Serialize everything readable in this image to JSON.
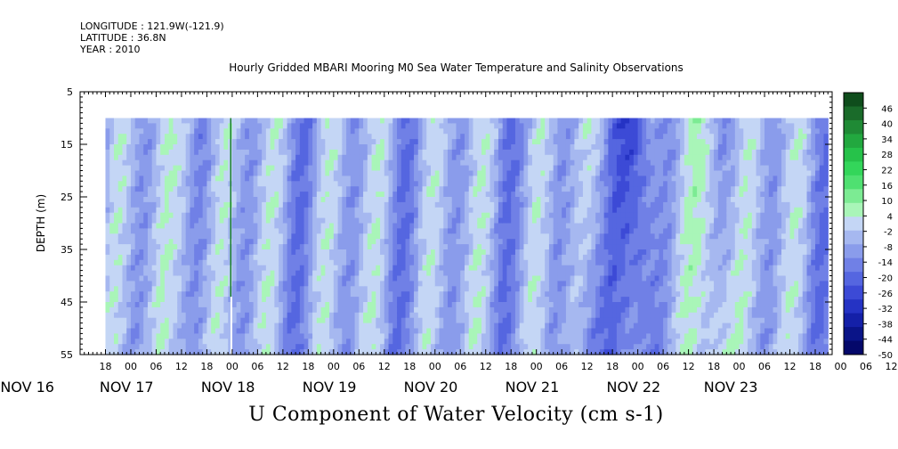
{
  "header": {
    "longitude": "LONGITUDE : 121.9W(-121.9)",
    "latitude": "LATITUDE : 36.8N",
    "year": "YEAR : 2010"
  },
  "chart_data": {
    "type": "heatmap",
    "title": "Hourly Gridded MBARI Mooring M0 Sea Water Temperature and Salinity Observations",
    "xlabel": "U Component of Water Velocity (cm s-1)",
    "ylabel": "DEPTH (m)",
    "x_hour_start": 12,
    "x_hour_end": 190,
    "data_hour_start": 18,
    "data_hour_end": 189,
    "ylim": [
      55,
      5
    ],
    "data_depth_top": 10,
    "data_depth_bottom": 55,
    "y_ticks": [
      "5",
      "15",
      "25",
      "35",
      "45",
      "55"
    ],
    "y_tick_values": [
      5,
      15,
      25,
      35,
      45,
      55
    ],
    "x_hour_ticks": [
      "18",
      "00",
      "06",
      "12",
      "18",
      "00",
      "06",
      "12",
      "18",
      "00",
      "06",
      "12",
      "18",
      "00",
      "06",
      "12",
      "18",
      "00",
      "06",
      "12",
      "18",
      "00",
      "06",
      "12",
      "18",
      "00",
      "06",
      "12",
      "18",
      "00",
      "06",
      "12"
    ],
    "x_day_labels": [
      "NOV 16",
      "NOV 17",
      "NOV 18",
      "NOV 19",
      "NOV 20",
      "NOV 21",
      "NOV 22",
      "NOV 23"
    ],
    "x_day_positions": [
      -0.5,
      23,
      47,
      71,
      95,
      119,
      143,
      166
    ],
    "colorbar": {
      "levels": [
        "46",
        "40",
        "34",
        "28",
        "22",
        "16",
        "10",
        "4",
        "-2",
        "-8",
        "-14",
        "-20",
        "-26",
        "-32",
        "-38",
        "-44",
        "-50"
      ],
      "range": [
        -50,
        52
      ],
      "colors": [
        "#0f4d1c",
        "#1a6b2a",
        "#1f8a35",
        "#22a83f",
        "#26c24a",
        "#33d65a",
        "#4fe071",
        "#7ceb93",
        "#a9f5b8",
        "#c4d6f5",
        "#a6b8f0",
        "#8a9ceb",
        "#7080e6",
        "#5566e0",
        "#3c4ad6",
        "#2533c4",
        "#1420a8",
        "#0a1488",
        "#04086a"
      ]
    },
    "velocity_extremes": {
      "strongest_positive_near": "NOV 22 18",
      "strongest_negative_near": "NOV 22 00"
    }
  }
}
